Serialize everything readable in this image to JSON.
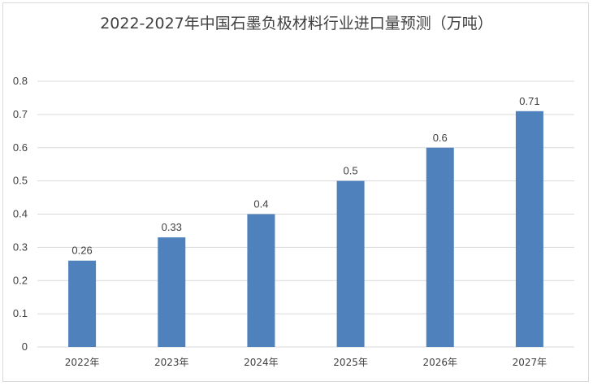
{
  "chart_data": {
    "type": "bar",
    "title": "2022-2027年中国石墨负极材料行业进口量预测（万吨）",
    "categories": [
      "2022年",
      "2023年",
      "2024年",
      "2025年",
      "2026年",
      "2027年"
    ],
    "values": [
      0.26,
      0.33,
      0.4,
      0.5,
      0.6,
      0.71
    ],
    "data_labels": [
      "0.26",
      "0.33",
      "0.4",
      "0.5",
      "0.6",
      "0.71"
    ],
    "y_ticks": [
      "0",
      "0.1",
      "0.2",
      "0.3",
      "0.4",
      "0.5",
      "0.6",
      "0.7",
      "0.8"
    ],
    "ylim": [
      0,
      0.8
    ],
    "xlabel": "",
    "ylabel": "",
    "grid": true,
    "legend": "none",
    "bar_color": "#4f81bd",
    "grid_color": "#d9d9d9"
  }
}
